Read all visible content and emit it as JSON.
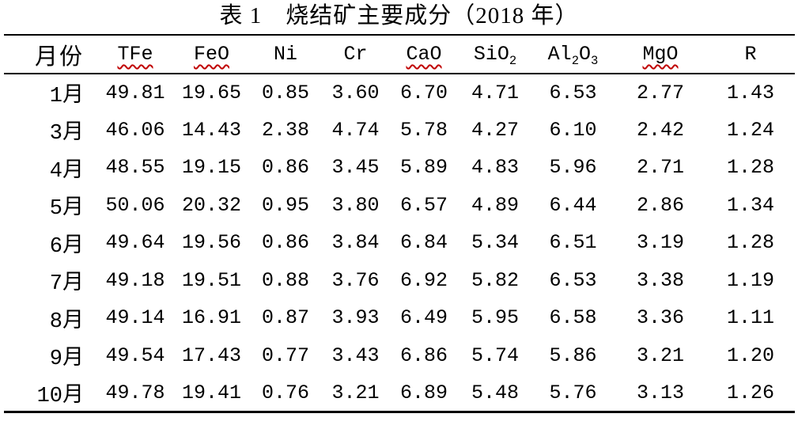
{
  "title": "表 1　烧结矿主要成分（2018 年）",
  "colors": {
    "text": "#000000",
    "background": "#ffffff",
    "rule": "#000000",
    "spellcheck_squiggle": "#c00000"
  },
  "table": {
    "columns": [
      {
        "key": "month",
        "label": "月份",
        "cjk": true,
        "squiggle": false,
        "parts": [
          [
            "月份",
            false
          ]
        ]
      },
      {
        "key": "tfe",
        "label": "TFe",
        "cjk": false,
        "squiggle": true,
        "parts": [
          [
            "TFe",
            false
          ]
        ]
      },
      {
        "key": "feo",
        "label": "FeO",
        "cjk": false,
        "squiggle": true,
        "parts": [
          [
            "FeO",
            false
          ]
        ]
      },
      {
        "key": "ni",
        "label": "Ni",
        "cjk": false,
        "squiggle": false,
        "parts": [
          [
            "Ni",
            false
          ]
        ]
      },
      {
        "key": "cr",
        "label": "Cr",
        "cjk": false,
        "squiggle": false,
        "parts": [
          [
            "Cr",
            false
          ]
        ]
      },
      {
        "key": "cao",
        "label": "CaO",
        "cjk": false,
        "squiggle": true,
        "parts": [
          [
            "CaO",
            false
          ]
        ]
      },
      {
        "key": "sio2",
        "label": "SiO2",
        "cjk": false,
        "squiggle": false,
        "parts": [
          [
            "SiO",
            false
          ],
          [
            "2",
            true
          ]
        ]
      },
      {
        "key": "al2o3",
        "label": "Al2O3",
        "cjk": false,
        "squiggle": false,
        "parts": [
          [
            "Al",
            false
          ],
          [
            "2",
            true
          ],
          [
            "O",
            false
          ],
          [
            "3",
            true
          ]
        ]
      },
      {
        "key": "mgo",
        "label": "MgO",
        "cjk": false,
        "squiggle": true,
        "parts": [
          [
            "MgO",
            false
          ]
        ]
      },
      {
        "key": "r",
        "label": "R",
        "cjk": false,
        "squiggle": false,
        "parts": [
          [
            "R",
            false
          ]
        ]
      }
    ],
    "rows": [
      {
        "month": "1月",
        "values": [
          "49.81",
          "19.65",
          "0.85",
          "3.60",
          "6.70",
          "4.71",
          "6.53",
          "2.77",
          "1.43"
        ]
      },
      {
        "month": "3月",
        "values": [
          "46.06",
          "14.43",
          "2.38",
          "4.74",
          "5.78",
          "4.27",
          "6.10",
          "2.42",
          "1.24"
        ]
      },
      {
        "month": "4月",
        "values": [
          "48.55",
          "19.15",
          "0.86",
          "3.45",
          "5.89",
          "4.83",
          "5.96",
          "2.71",
          "1.28"
        ]
      },
      {
        "month": "5月",
        "values": [
          "50.06",
          "20.32",
          "0.95",
          "3.80",
          "6.57",
          "4.89",
          "6.44",
          "2.86",
          "1.34"
        ]
      },
      {
        "month": "6月",
        "values": [
          "49.64",
          "19.56",
          "0.86",
          "3.84",
          "6.84",
          "5.34",
          "6.51",
          "3.19",
          "1.28"
        ]
      },
      {
        "month": "7月",
        "values": [
          "49.18",
          "19.51",
          "0.88",
          "3.76",
          "6.92",
          "5.82",
          "6.53",
          "3.38",
          "1.19"
        ]
      },
      {
        "month": "8月",
        "values": [
          "49.14",
          "16.91",
          "0.87",
          "3.93",
          "6.49",
          "5.95",
          "6.58",
          "3.36",
          "1.11"
        ]
      },
      {
        "month": "9月",
        "values": [
          "49.54",
          "17.43",
          "0.77",
          "3.43",
          "6.86",
          "5.74",
          "5.86",
          "3.21",
          "1.20"
        ]
      },
      {
        "month": "10月",
        "values": [
          "49.78",
          "19.41",
          "0.76",
          "3.21",
          "6.89",
          "5.48",
          "5.76",
          "3.13",
          "1.26"
        ]
      }
    ]
  }
}
